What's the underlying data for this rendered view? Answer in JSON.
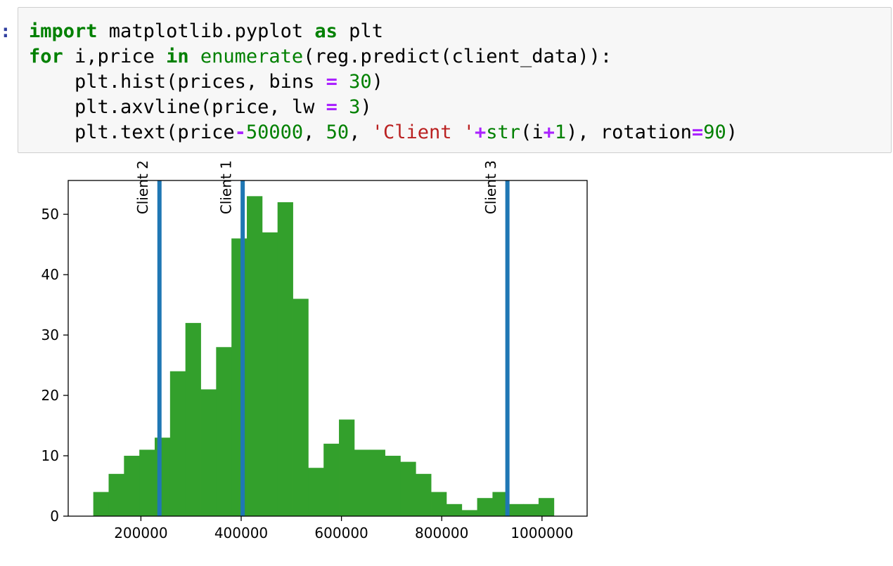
{
  "cell": {
    "prompt": ":",
    "code_lines": [
      [
        {
          "t": "import",
          "c": "kw"
        },
        {
          "t": " matplotlib.pyplot "
        },
        {
          "t": "as",
          "c": "kw"
        },
        {
          "t": " plt"
        }
      ],
      [
        {
          "t": "for",
          "c": "kw"
        },
        {
          "t": " i,price "
        },
        {
          "t": "in",
          "c": "kw"
        },
        {
          "t": " "
        },
        {
          "t": "enumerate",
          "c": "bi"
        },
        {
          "t": "(reg.predict(client_data)):"
        }
      ],
      [
        {
          "t": "    plt.hist(prices, bins "
        },
        {
          "t": "=",
          "c": "op"
        },
        {
          "t": " "
        },
        {
          "t": "30",
          "c": "num"
        },
        {
          "t": ")"
        }
      ],
      [
        {
          "t": "    plt.axvline(price, lw "
        },
        {
          "t": "=",
          "c": "op"
        },
        {
          "t": " "
        },
        {
          "t": "3",
          "c": "num"
        },
        {
          "t": ")"
        }
      ],
      [
        {
          "t": "    plt.text(price"
        },
        {
          "t": "-",
          "c": "op"
        },
        {
          "t": "50000",
          "c": "num"
        },
        {
          "t": ", "
        },
        {
          "t": "50",
          "c": "num"
        },
        {
          "t": ", "
        },
        {
          "t": "'Client '",
          "c": "str"
        },
        {
          "t": "+",
          "c": "op"
        },
        {
          "t": "str",
          "c": "bi"
        },
        {
          "t": "(i"
        },
        {
          "t": "+",
          "c": "op"
        },
        {
          "t": "1",
          "c": "num"
        },
        {
          "t": "), rotation"
        },
        {
          "t": "=",
          "c": "op"
        },
        {
          "t": "90",
          "c": "num"
        },
        {
          "t": ")"
        }
      ]
    ]
  },
  "chart_data": {
    "type": "bar",
    "bins": 30,
    "bin_start": 105000,
    "bin_width": 30625,
    "values": [
      4,
      7,
      10,
      11,
      13,
      24,
      32,
      21,
      28,
      46,
      53,
      47,
      52,
      36,
      8,
      12,
      16,
      11,
      11,
      10,
      9,
      7,
      4,
      2,
      1,
      3,
      4,
      2,
      2,
      3
    ],
    "xlim": [
      55000,
      1090000
    ],
    "ylim": [
      0,
      55.6
    ],
    "xticks": [
      200000,
      400000,
      600000,
      800000,
      1000000
    ],
    "xtick_labels": [
      "200000",
      "400000",
      "600000",
      "800000",
      "1000000"
    ],
    "yticks": [
      0,
      10,
      20,
      30,
      40,
      50
    ],
    "ytick_labels": [
      "0",
      "10",
      "20",
      "30",
      "40",
      "50"
    ],
    "vlines": [
      {
        "name": "Client 1",
        "x": 403000
      },
      {
        "name": "Client 2",
        "x": 237000
      },
      {
        "name": "Client 3",
        "x": 931000
      }
    ],
    "label_y": 50,
    "label_offset": -50000,
    "bar_color": "#33a02c",
    "line_color": "#1f77b4",
    "grid": false
  }
}
